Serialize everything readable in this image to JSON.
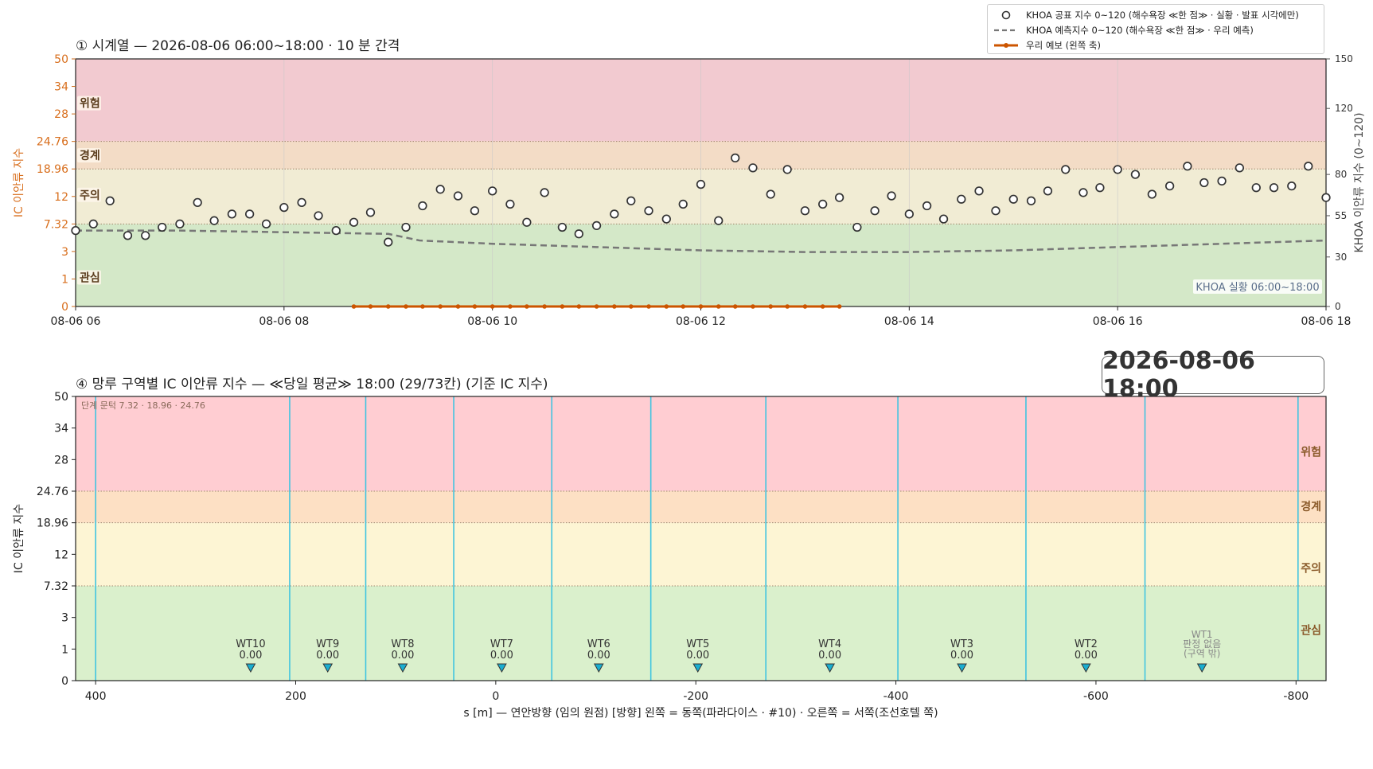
{
  "chart_data": [
    {
      "type": "scatter",
      "title": "① 시계열 — 2026-08-06 06:00~18:00 · 10 분 간격",
      "ylabel": "IC 이안류 지수",
      "y2label": "KHOA 이안류 지수 (0~120)",
      "x_ticks": [
        "08-06 06",
        "08-06 08",
        "08-06 10",
        "08-06 12",
        "08-06 14",
        "08-06 16",
        "08-06 18"
      ],
      "y_ticks": [
        "0",
        "1",
        "3",
        "7.32",
        "12",
        "18.96",
        "24.76",
        "28",
        "34",
        "50"
      ],
      "y2_ticks": [
        "0",
        "30",
        "55",
        "80",
        "120",
        "150"
      ],
      "y2lim": [
        0,
        150
      ],
      "bands": [
        {
          "label": "관심",
          "color": "#d4e8c8"
        },
        {
          "label": "주의",
          "color": "#f1ecd4"
        },
        {
          "label": "경계",
          "color": "#f3dcc6"
        },
        {
          "label": "위험",
          "color": "#f2cad0"
        }
      ],
      "annotation": "KHOA 실황 06:00~18:00",
      "series": [
        {
          "name": "KHOA 공표 지수 0~120 (해수욕장 ≪한 점≫ · 실황 · 발표 시각에만)",
          "axis": "right",
          "style": "hollow-circle",
          "x_hours": [
            6.0,
            6.17,
            6.33,
            6.5,
            6.67,
            6.83,
            7.0,
            7.17,
            7.33,
            7.5,
            7.67,
            7.83,
            8.0,
            8.17,
            8.33,
            8.5,
            8.67,
            8.83,
            9.0,
            9.17,
            9.33,
            9.5,
            9.67,
            9.83,
            10.0,
            10.17,
            10.33,
            10.5,
            10.67,
            10.83,
            11.0,
            11.17,
            11.33,
            11.5,
            11.67,
            11.83,
            12.0,
            12.17,
            12.33,
            12.5,
            12.67,
            12.83,
            13.0,
            13.17,
            13.33,
            13.5,
            13.67,
            13.83,
            14.0,
            14.17,
            14.33,
            14.5,
            14.67,
            14.83,
            15.0,
            15.17,
            15.33,
            15.5,
            15.67,
            15.83,
            16.0,
            16.17,
            16.33,
            16.5,
            16.67,
            16.83,
            17.0,
            17.17,
            17.33,
            17.5,
            17.67,
            17.83,
            18.0
          ],
          "values": [
            46,
            50,
            64,
            43,
            43,
            48,
            50,
            63,
            52,
            56,
            56,
            50,
            60,
            63,
            55,
            46,
            51,
            57,
            39,
            48,
            61,
            71,
            67,
            58,
            70,
            62,
            51,
            69,
            48,
            44,
            49,
            56,
            64,
            58,
            53,
            62,
            74,
            52,
            90,
            84,
            68,
            83,
            58,
            62,
            66,
            48,
            58,
            67,
            56,
            61,
            53,
            65,
            70,
            58,
            65,
            64,
            70,
            83,
            69,
            72,
            83,
            80,
            68,
            73,
            85,
            75,
            76,
            84,
            72,
            72,
            73,
            85,
            66
          ]
        },
        {
          "name": "KHOA 예측지수 0~120 (해수욕장 ≪한 점≫ · 우리 예측)",
          "axis": "right",
          "style": "dashed",
          "x_hours": [
            6.0,
            7.0,
            8.0,
            9.0,
            9.3,
            10.0,
            11.0,
            12.0,
            13.0,
            14.0,
            15.0,
            16.0,
            17.0,
            18.0
          ],
          "values": [
            46,
            46,
            45,
            44,
            40,
            38,
            36,
            34,
            33,
            33,
            34,
            36,
            38,
            40
          ]
        },
        {
          "name": "우리 예보 (왼쪽 축)",
          "axis": "left",
          "style": "line-marker",
          "color": "#cc5500",
          "x_hours": [
            8.67,
            8.83,
            9.0,
            9.17,
            9.33,
            9.5,
            9.67,
            9.83,
            10.0,
            10.17,
            10.33,
            10.5,
            10.67,
            10.83,
            11.0,
            11.17,
            11.33,
            11.5,
            11.67,
            11.83,
            12.0,
            12.17,
            12.33,
            12.5,
            12.67,
            12.83,
            13.0,
            13.17,
            13.33
          ],
          "values": [
            0,
            0,
            0,
            0,
            0,
            0,
            0,
            0,
            0,
            0,
            0,
            0,
            0,
            0,
            0,
            0,
            0,
            0,
            0,
            0,
            0,
            0,
            0,
            0,
            0,
            0,
            0,
            0,
            0
          ]
        }
      ]
    },
    {
      "type": "scatter",
      "title": "④ 망루 구역별 IC 이안류 지수 — ≪당일 평균≫ 18:00  (29/73칸)   (기준 IC 지수)",
      "xlabel": "s [m] — 연안방향 (임의 원점)     [방향] 왼쪽 = 동쪽(파라다이스 · #10) · 오른쪽 = 서쪽(조선호텔 쪽)",
      "ylabel": "IC 이안류 지수",
      "x_ticks": [
        "400",
        "200",
        "0",
        "-200",
        "-400",
        "-600",
        "-800"
      ],
      "x_tick_values": [
        400,
        200,
        0,
        -200,
        -400,
        -600,
        -800
      ],
      "xlim": [
        420,
        -830
      ],
      "y_ticks": [
        "0",
        "1",
        "3",
        "7.32",
        "12",
        "18.96",
        "24.76",
        "28",
        "34",
        "50"
      ],
      "threshold_note": "단계 문턱 7.32 · 18.96 · 24.76",
      "bands": [
        {
          "label": "관심",
          "color": "#daf0cc"
        },
        {
          "label": "주의",
          "color": "#fdf5d4"
        },
        {
          "label": "경계",
          "color": "#fde0c4"
        },
        {
          "label": "위험",
          "color": "#ffcdd2"
        }
      ],
      "zone_boundaries": [
        400,
        206,
        130,
        42,
        -56,
        -155,
        -270,
        -402,
        -530,
        -649,
        -802
      ],
      "points": [
        {
          "label": "WT10",
          "x": 245,
          "value": "0.00"
        },
        {
          "label": "WT9",
          "x": 168,
          "value": "0.00"
        },
        {
          "label": "WT8",
          "x": 93,
          "value": "0.00"
        },
        {
          "label": "WT7",
          "x": -6,
          "value": "0.00"
        },
        {
          "label": "WT6",
          "x": -103,
          "value": "0.00"
        },
        {
          "label": "WT5",
          "x": -202,
          "value": "0.00"
        },
        {
          "label": "WT4",
          "x": -334,
          "value": "0.00"
        },
        {
          "label": "WT3",
          "x": -466,
          "value": "0.00"
        },
        {
          "label": "WT2",
          "x": -590,
          "value": "0.00"
        }
      ],
      "no_judgement": {
        "label": "WT1",
        "x": -706,
        "line1": "판정 없음",
        "line2": "(구역 밖)"
      }
    }
  ],
  "timestamp": "2026-08-06  18:00"
}
